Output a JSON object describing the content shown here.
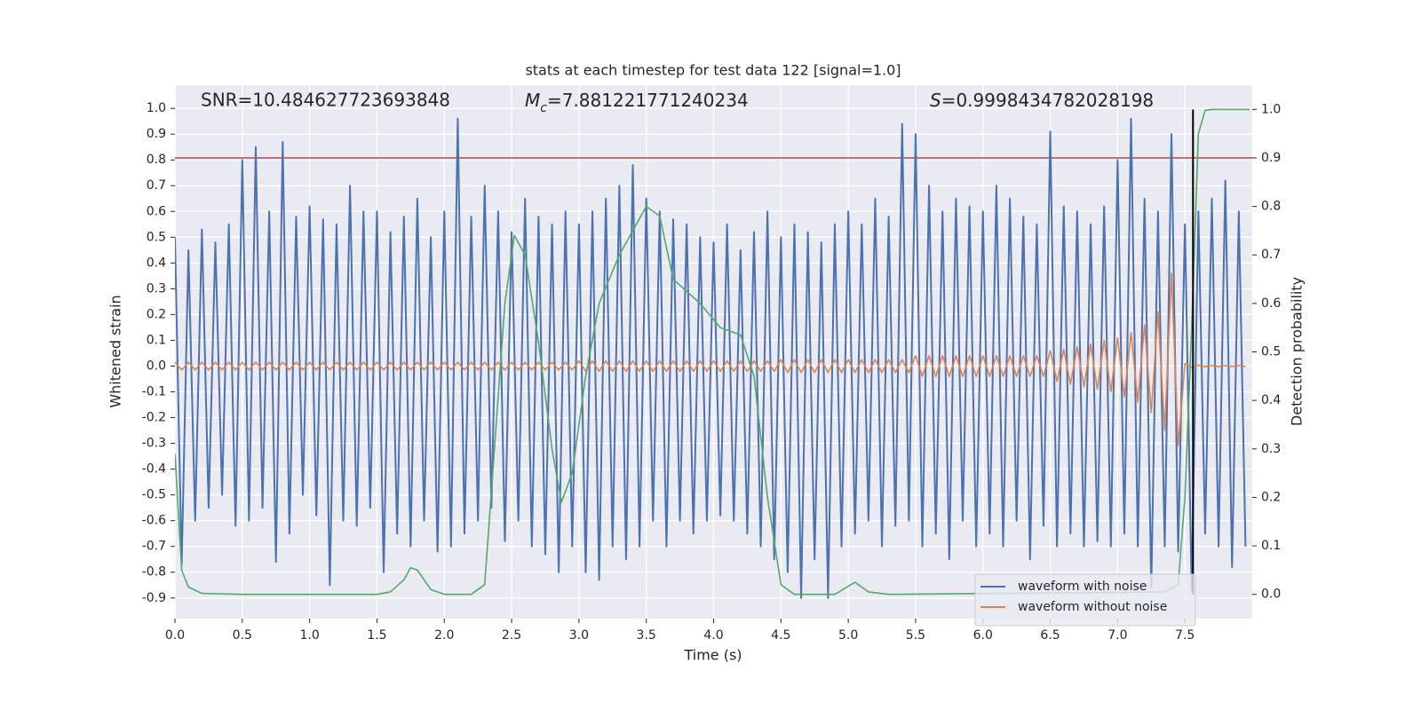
{
  "chart_data": {
    "type": "line",
    "title": "stats at each timestep for test data 122 [signal=1.0]",
    "xlabel": "Time (s)",
    "ylabel": "Whitened strain",
    "y2label": "Detection probability",
    "annotations": [
      {
        "text": "SNR=10.484627723693848"
      },
      {
        "symbol": "M",
        "subscript": "c",
        "text": "=7.881221771240234"
      },
      {
        "symbol": "S",
        "text": "=0.9998434782028198"
      }
    ],
    "xlim": [
      0,
      8.0
    ],
    "ylim": [
      -0.98,
      1.09
    ],
    "y2lim": [
      -0.05,
      1.05
    ],
    "xticks": [
      {
        "value": 0,
        "label": "0.0"
      },
      0.5,
      {
        "value": 1,
        "label": "1.0"
      },
      1.5,
      {
        "value": 2,
        "label": "2.0"
      },
      2.5,
      {
        "value": 3,
        "label": "3.0"
      },
      3.5,
      {
        "value": 4,
        "label": "4.0"
      },
      4.5,
      {
        "value": 5,
        "label": "5.0"
      },
      5.5,
      {
        "value": 6,
        "label": "6.0"
      },
      6.5,
      {
        "value": 7,
        "label": "7.0"
      },
      7.5
    ],
    "yticks": [
      -0.9,
      -0.8,
      -0.7,
      -0.6,
      -0.5,
      -0.4,
      -0.3,
      -0.2,
      -0.1,
      {
        "value": 0,
        "label": "0.0"
      },
      0.1,
      0.2,
      0.3,
      0.4,
      0.5,
      0.6,
      0.7,
      0.8,
      0.9,
      {
        "value": 1,
        "label": "1.0"
      }
    ],
    "y2ticks": [
      {
        "value": 0,
        "label": "0.0"
      },
      0.1,
      0.2,
      0.3,
      0.4,
      0.5,
      0.6,
      0.7,
      0.8,
      0.9,
      {
        "value": 1,
        "label": "1.0"
      }
    ],
    "grid": true,
    "legend": "lower right",
    "threshold": {
      "value": 0.9,
      "axis": "y2",
      "color": "#c44e52"
    },
    "vline": {
      "x": 7.56,
      "y2range": [
        0,
        1
      ],
      "color": "#000000"
    },
    "x": [
      0,
      0.05,
      0.1,
      0.15,
      0.2,
      0.25,
      0.3,
      0.35,
      0.4,
      0.45,
      0.5,
      0.55,
      0.6,
      0.65,
      0.7,
      0.75,
      0.8,
      0.85,
      0.9,
      0.95,
      1,
      1.05,
      1.1,
      1.15,
      1.2,
      1.25,
      1.3,
      1.35,
      1.4,
      1.45,
      1.5,
      1.55,
      1.6,
      1.65,
      1.7,
      1.75,
      1.8,
      1.85,
      1.9,
      1.95,
      2,
      2.05,
      2.1,
      2.15,
      2.2,
      2.25,
      2.3,
      2.35,
      2.4,
      2.45,
      2.5,
      2.55,
      2.6,
      2.65,
      2.7,
      2.75,
      2.8,
      2.85,
      2.9,
      2.95,
      3,
      3.05,
      3.1,
      3.15,
      3.2,
      3.25,
      3.3,
      3.35,
      3.4,
      3.45,
      3.5,
      3.55,
      3.6,
      3.65,
      3.7,
      3.75,
      3.8,
      3.85,
      3.9,
      3.95,
      4,
      4.05,
      4.1,
      4.15,
      4.2,
      4.25,
      4.3,
      4.35,
      4.4,
      4.45,
      4.5,
      4.55,
      4.6,
      4.65,
      4.7,
      4.75,
      4.8,
      4.85,
      4.9,
      4.95,
      5,
      5.05,
      5.1,
      5.15,
      5.2,
      5.25,
      5.3,
      5.35,
      5.4,
      5.45,
      5.5,
      5.55,
      5.6,
      5.65,
      5.7,
      5.75,
      5.8,
      5.85,
      5.9,
      5.95,
      6,
      6.05,
      6.1,
      6.15,
      6.2,
      6.25,
      6.3,
      6.35,
      6.4,
      6.45,
      6.5,
      6.55,
      6.6,
      6.65,
      6.7,
      6.75,
      6.8,
      6.85,
      6.9,
      6.95,
      7,
      7.05,
      7.1,
      7.15,
      7.2,
      7.25,
      7.3,
      7.35,
      7.4,
      7.45,
      7.5,
      7.55,
      7.6,
      7.65,
      7.7,
      7.75,
      7.8,
      7.85,
      7.9,
      7.95
    ],
    "series": [
      {
        "name": "waveform with noise",
        "color": "#4c72b0",
        "axis": "y",
        "values": [
          0.5,
          -0.77,
          0.45,
          -0.6,
          0.53,
          -0.55,
          0.48,
          -0.5,
          0.55,
          -0.62,
          0.8,
          -0.6,
          0.85,
          -0.55,
          0.6,
          -0.76,
          0.87,
          -0.65,
          0.58,
          -0.5,
          0.62,
          -0.58,
          0.57,
          -0.85,
          0.55,
          -0.6,
          0.7,
          -0.62,
          0.6,
          -0.55,
          0.6,
          -0.8,
          0.52,
          -0.65,
          0.58,
          -0.7,
          0.65,
          -0.6,
          0.5,
          -0.72,
          0.6,
          -0.7,
          0.96,
          -0.65,
          0.58,
          -0.6,
          0.7,
          -0.55,
          0.6,
          -0.68,
          0.52,
          -0.6,
          0.65,
          -0.7,
          0.58,
          -0.73,
          0.55,
          -0.8,
          0.6,
          -0.7,
          0.55,
          -0.8,
          0.6,
          -0.83,
          0.65,
          -0.7,
          0.7,
          -0.75,
          0.78,
          -0.7,
          0.65,
          -0.6,
          0.6,
          -0.7,
          0.57,
          -0.6,
          0.55,
          -0.65,
          0.5,
          -0.6,
          0.48,
          -0.58,
          0.55,
          -0.6,
          0.45,
          -0.65,
          0.52,
          -0.7,
          0.6,
          -0.75,
          0.5,
          -0.8,
          0.55,
          -0.9,
          0.52,
          -0.75,
          0.48,
          -0.9,
          0.55,
          -0.7,
          0.6,
          -0.65,
          0.55,
          -0.6,
          0.65,
          -0.7,
          0.58,
          -0.62,
          0.94,
          -0.6,
          0.9,
          -0.7,
          0.7,
          -0.65,
          0.6,
          -0.75,
          0.65,
          -0.6,
          0.62,
          -0.7,
          0.6,
          -0.65,
          0.7,
          -0.7,
          0.65,
          -0.6,
          0.58,
          -0.75,
          0.55,
          -0.62,
          0.91,
          -0.7,
          0.62,
          -0.65,
          0.6,
          -0.7,
          0.55,
          -0.68,
          0.62,
          -0.7,
          0.8,
          -0.65,
          0.96,
          -0.7,
          0.65,
          -0.86,
          0.6,
          -0.7,
          0.9,
          -0.72,
          0.55,
          -0.87,
          0.6,
          -0.65,
          0.65,
          -0.7,
          0.72,
          -0.78,
          0.6,
          -0.7
        ]
      },
      {
        "name": "waveform without noise",
        "color": "#dd8452",
        "axis": "y",
        "values": [
          0.015,
          -0.015,
          0.015,
          -0.015,
          0.015,
          -0.015,
          0.015,
          -0.015,
          0.015,
          -0.015,
          0.015,
          -0.015,
          0.015,
          -0.015,
          0.015,
          -0.015,
          0.015,
          -0.015,
          0.015,
          -0.015,
          0.015,
          -0.015,
          0.015,
          -0.015,
          0.015,
          -0.015,
          0.015,
          -0.015,
          0.015,
          -0.015,
          0.015,
          -0.015,
          0.015,
          -0.015,
          0.015,
          -0.015,
          0.015,
          -0.015,
          0.015,
          -0.015,
          0.015,
          -0.015,
          0.015,
          -0.015,
          0.015,
          -0.015,
          0.015,
          -0.015,
          0.015,
          -0.015,
          0.015,
          -0.015,
          0.015,
          -0.015,
          0.015,
          -0.015,
          0.015,
          -0.015,
          0.015,
          -0.015,
          0.02,
          -0.02,
          0.02,
          -0.02,
          0.02,
          -0.02,
          0.02,
          -0.02,
          0.02,
          -0.02,
          0.02,
          -0.02,
          0.02,
          -0.02,
          0.02,
          -0.02,
          0.02,
          -0.02,
          0.02,
          -0.02,
          0.02,
          -0.02,
          0.02,
          -0.02,
          0.02,
          -0.02,
          0.02,
          -0.02,
          0.02,
          -0.02,
          0.025,
          -0.025,
          0.025,
          -0.025,
          0.025,
          -0.025,
          0.025,
          -0.025,
          0.025,
          -0.025,
          0.025,
          -0.025,
          0.025,
          -0.025,
          0.025,
          -0.025,
          0.025,
          -0.025,
          0.025,
          -0.025,
          0.04,
          -0.04,
          0.04,
          -0.04,
          0.04,
          -0.04,
          0.04,
          -0.04,
          0.04,
          -0.04,
          0.04,
          -0.04,
          0.04,
          -0.04,
          0.04,
          -0.04,
          0.04,
          -0.04,
          0.04,
          -0.04,
          0.06,
          -0.06,
          0.065,
          -0.07,
          0.075,
          -0.08,
          0.085,
          -0.09,
          0.1,
          -0.1,
          0.11,
          -0.12,
          0.13,
          -0.14,
          0.16,
          -0.18,
          0.21,
          -0.25,
          0.36,
          -0.31,
          0.01,
          -0.005,
          0.003,
          -0.002,
          0.002,
          -0.002,
          0.002,
          -0.002,
          0.002,
          -0.002
        ]
      },
      {
        "color": "#55a868",
        "axis": "y2",
        "x": [
          0,
          0.05,
          0.1,
          0.2,
          0.5,
          1.5,
          1.6,
          1.7,
          1.75,
          1.8,
          1.9,
          2.0,
          2.2,
          2.3,
          2.45,
          2.52,
          2.6,
          2.7,
          2.8,
          2.87,
          2.95,
          3.05,
          3.15,
          3.3,
          3.5,
          3.6,
          3.7,
          3.9,
          4.05,
          4.2,
          4.3,
          4.4,
          4.5,
          4.6,
          4.9,
          5.05,
          5.15,
          5.3,
          7.35,
          7.45,
          7.5,
          7.55,
          7.6,
          7.65,
          7.7,
          7.98
        ],
        "values": [
          0.29,
          0.05,
          0.015,
          0.002,
          0,
          0,
          0.005,
          0.03,
          0.055,
          0.05,
          0.01,
          0,
          0,
          0.02,
          0.6,
          0.74,
          0.7,
          0.52,
          0.3,
          0.19,
          0.25,
          0.45,
          0.6,
          0.7,
          0.8,
          0.78,
          0.65,
          0.6,
          0.55,
          0.535,
          0.45,
          0.2,
          0.02,
          0,
          0,
          0.025,
          0.005,
          0,
          0.005,
          0.02,
          0.2,
          0.55,
          0.95,
          0.998,
          1,
          1
        ]
      }
    ]
  }
}
